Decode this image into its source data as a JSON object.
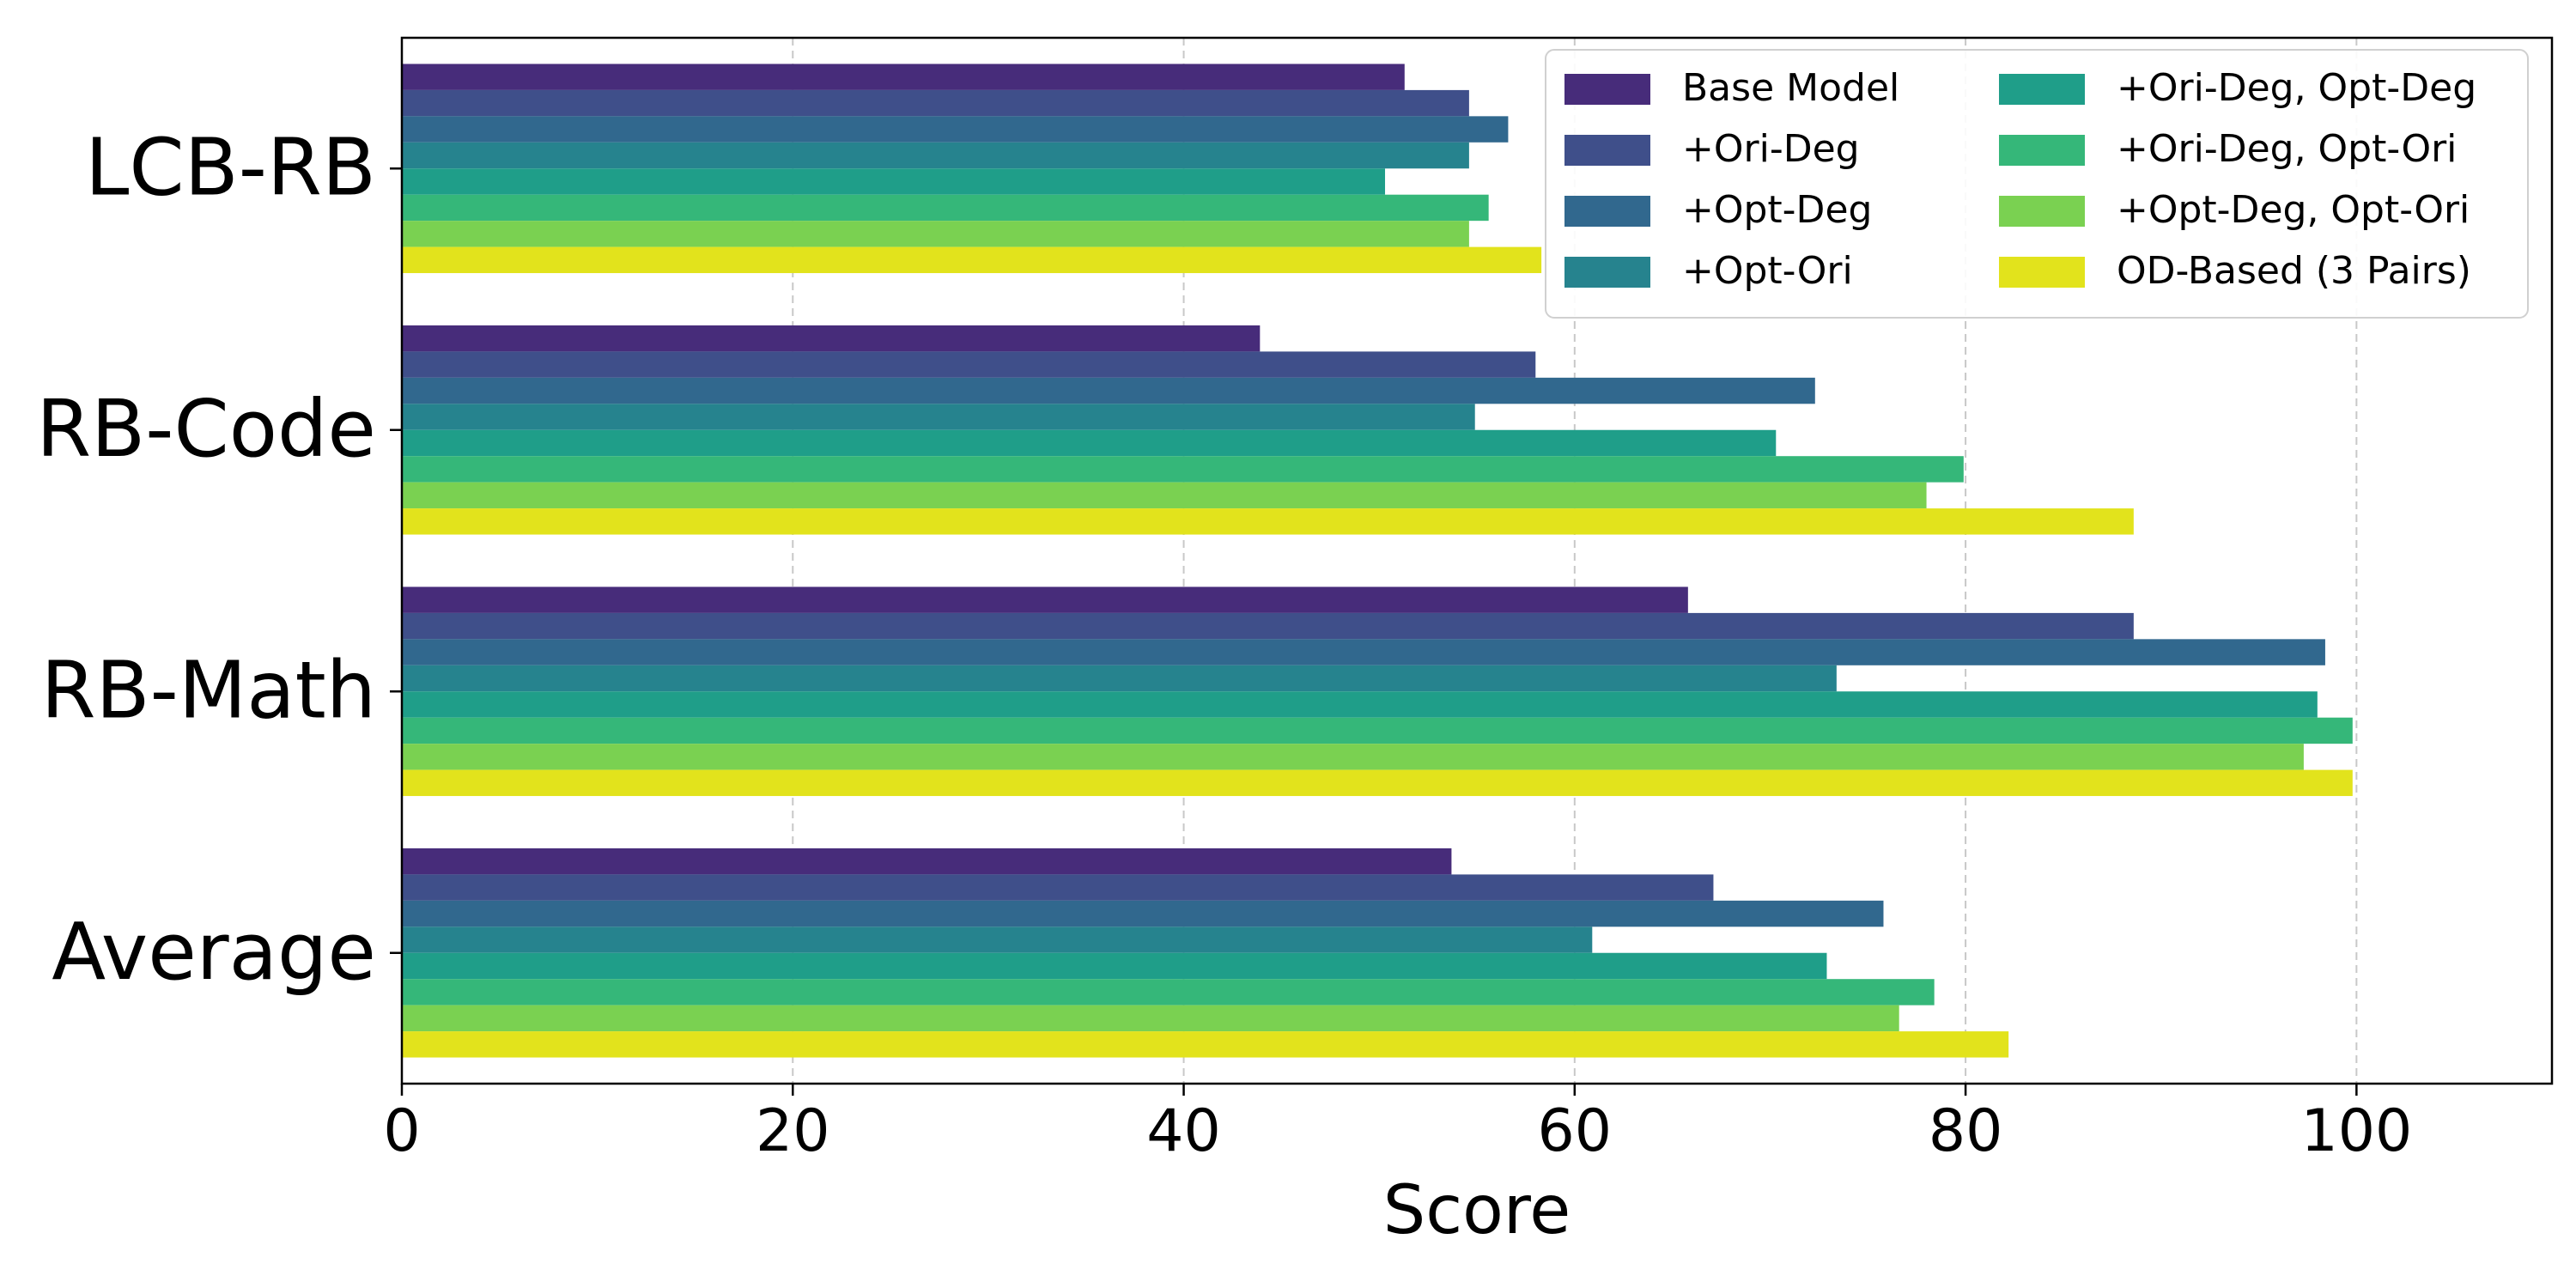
{
  "chart_data": {
    "type": "bar",
    "orientation": "horizontal",
    "categories": [
      "LCB-RB",
      "RB-Code",
      "RB-Math",
      "Average"
    ],
    "xlabel": "Score",
    "ylabel": "",
    "xlim": [
      0,
      110
    ],
    "xticks": [
      0,
      20,
      40,
      60,
      80,
      100
    ],
    "grid": "x, dashed",
    "legend_position": "top-right",
    "legend_columns": 2,
    "series": [
      {
        "name": "Base Model",
        "color": "#472c7a",
        "values": [
          51.3,
          43.9,
          65.8,
          53.7
        ]
      },
      {
        "name": "+Ori-Deg",
        "color": "#3f4f8a",
        "values": [
          54.6,
          58.0,
          88.6,
          67.1
        ]
      },
      {
        "name": "+Opt-Deg",
        "color": "#31688e",
        "values": [
          56.6,
          72.3,
          98.4,
          75.8
        ]
      },
      {
        "name": "+Opt-Ori",
        "color": "#26838e",
        "values": [
          54.6,
          54.9,
          73.4,
          60.9
        ]
      },
      {
        "name": "+Ori-Deg, Opt-Deg",
        "color": "#1f9e89",
        "values": [
          50.3,
          70.3,
          98.0,
          72.9
        ]
      },
      {
        "name": "+Ori-Deg, Opt-Ori",
        "color": "#35b779",
        "values": [
          55.6,
          79.9,
          99.8,
          78.4
        ]
      },
      {
        "name": "+Opt-Deg, Opt-Ori",
        "color": "#7ad151",
        "values": [
          54.6,
          78.0,
          97.3,
          76.6
        ]
      },
      {
        "name": "OD-Based (3 Pairs)",
        "color": "#e2e31c",
        "values": [
          58.3,
          88.6,
          99.8,
          82.2
        ]
      }
    ]
  }
}
